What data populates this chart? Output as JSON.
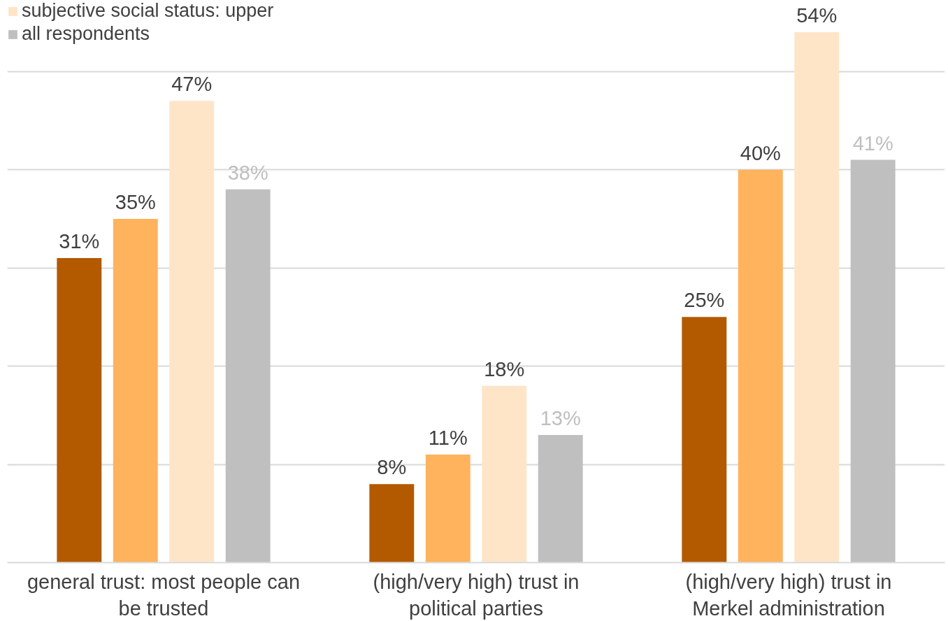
{
  "chart_data": {
    "type": "bar",
    "categories": [
      "general trust: most people can be trusted",
      "(high/very high) trust in political parties",
      "(high/very high) trust in Merkel administration"
    ],
    "series": [
      {
        "color": "#b35900",
        "values": [
          31,
          8,
          25
        ],
        "value_labels": [
          "31%",
          "8%",
          "25%"
        ]
      },
      {
        "color": "#ffb35c",
        "values": [
          35,
          11,
          40
        ],
        "value_labels": [
          "35%",
          "11%",
          "40%"
        ]
      },
      {
        "name": "subjective social status: upper",
        "color": "#fee5c8",
        "values": [
          47,
          18,
          54
        ],
        "value_labels": [
          "47%",
          "18%",
          "54%"
        ]
      },
      {
        "name": "all respondents",
        "color": "#bfbfbf",
        "values": [
          38,
          13,
          41
        ],
        "value_labels": [
          "38%",
          "13%",
          "41%"
        ]
      }
    ],
    "tick_labels": "x",
    "grid": "y",
    "legend": "top left"
  }
}
